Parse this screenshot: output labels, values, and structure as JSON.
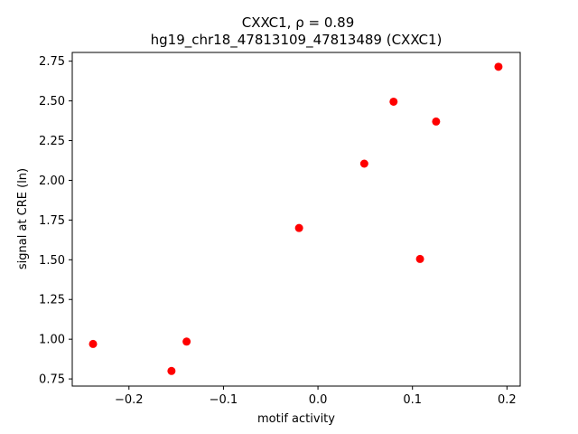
{
  "chart_data": {
    "type": "scatter",
    "title_line1": "CXXC1, ρ = 0.89",
    "title_line2": "hg19_chr18_47813109_47813489 (CXXC1)",
    "xlabel": "motif activity",
    "ylabel": "signal at CRE (ln)",
    "xlim": [
      -0.26,
      0.214
    ],
    "ylim": [
      0.705,
      2.805
    ],
    "xticks": [
      -0.2,
      -0.1,
      0.0,
      0.1,
      0.2
    ],
    "xtick_labels": [
      "−0.2",
      "−0.1",
      "0.0",
      "0.1",
      "0.2"
    ],
    "yticks": [
      0.75,
      1.0,
      1.25,
      1.5,
      1.75,
      2.0,
      2.25,
      2.5,
      2.75
    ],
    "ytick_labels": [
      "0.75",
      "1.00",
      "1.25",
      "1.50",
      "1.75",
      "2.00",
      "2.25",
      "2.50",
      "2.75"
    ],
    "marker_color": "#ff0000",
    "grid": false,
    "points": [
      {
        "x": -0.238,
        "y": 0.97
      },
      {
        "x": -0.155,
        "y": 0.8
      },
      {
        "x": -0.139,
        "y": 0.985
      },
      {
        "x": -0.02,
        "y": 1.7
      },
      {
        "x": 0.049,
        "y": 2.105
      },
      {
        "x": 0.08,
        "y": 2.495
      },
      {
        "x": 0.108,
        "y": 1.505
      },
      {
        "x": 0.125,
        "y": 2.37
      },
      {
        "x": 0.191,
        "y": 2.715
      }
    ]
  }
}
